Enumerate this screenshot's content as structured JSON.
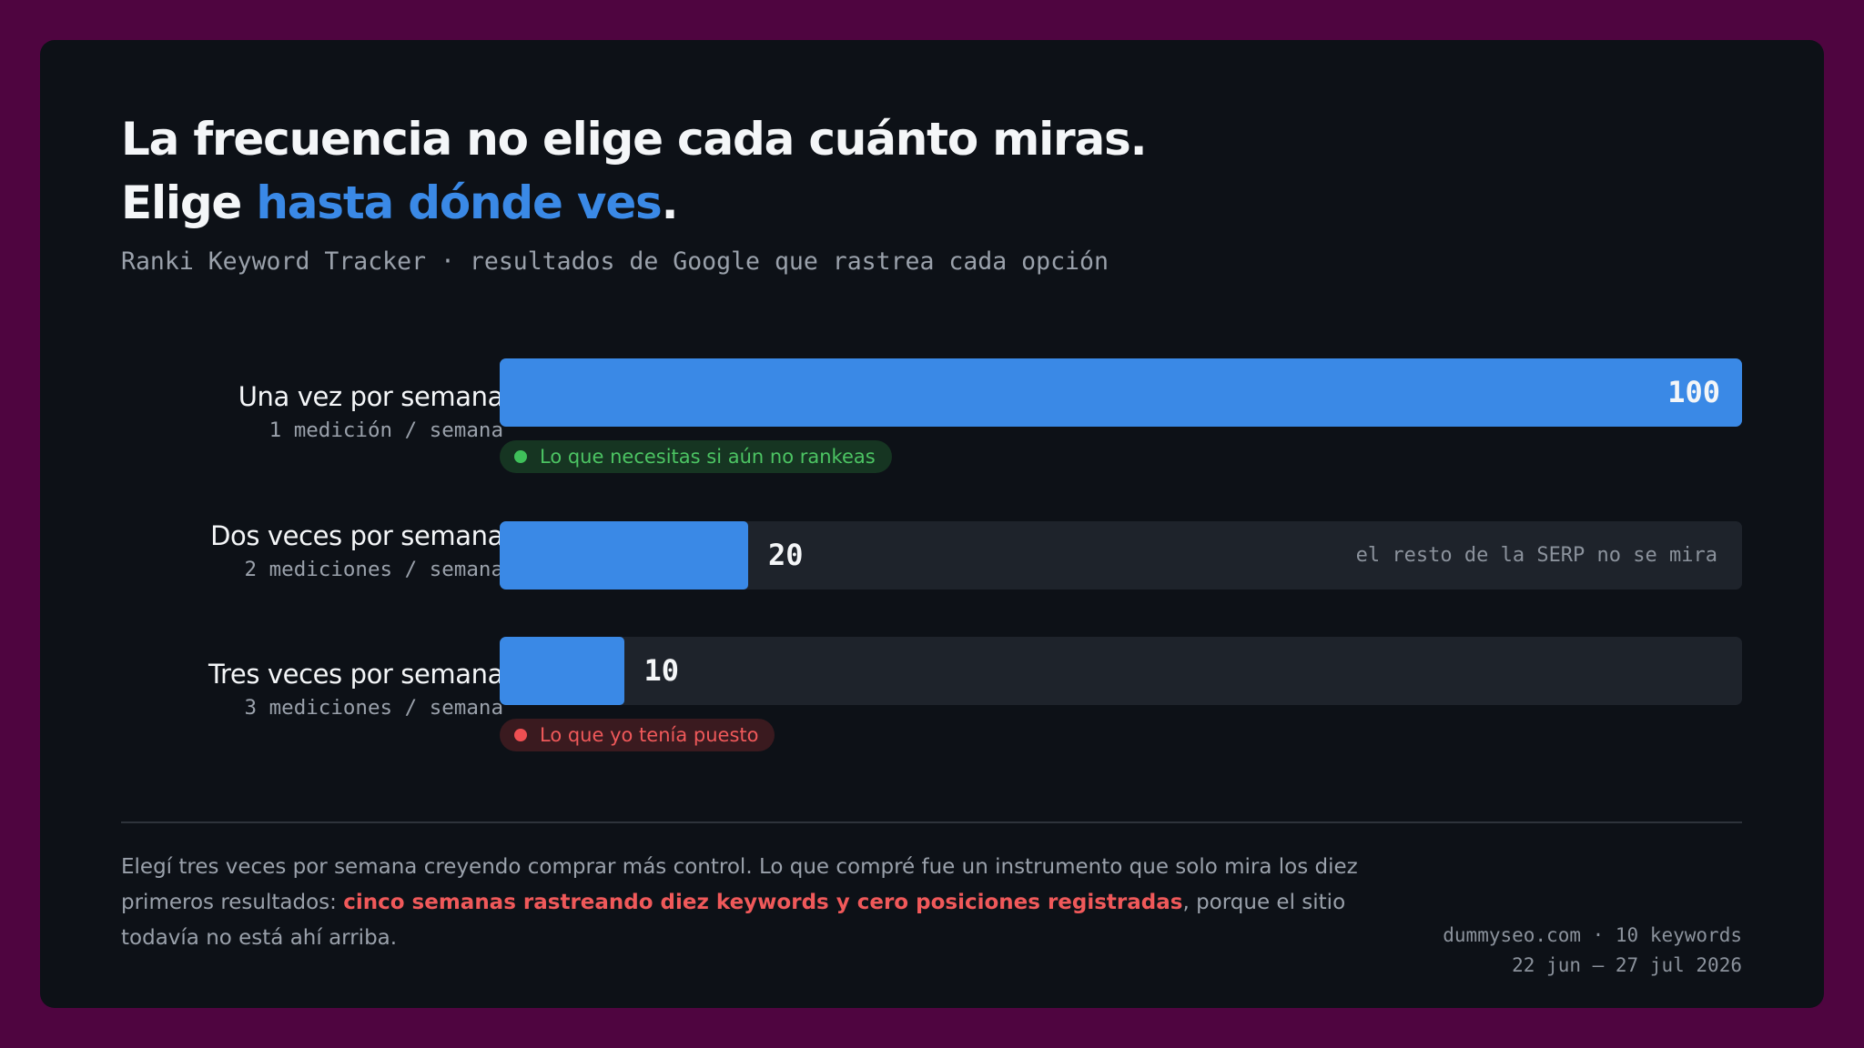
{
  "header": {
    "title_line1": "La frecuencia no elige cada cuánto miras.",
    "title_line2_prefix": "Elige ",
    "title_line2_highlight": "hasta dónde ves",
    "title_line2_suffix": ".",
    "subtitle": "Ranki Keyword Tracker · resultados de Google que rastrea cada opción"
  },
  "chart_data": {
    "type": "bar",
    "orientation": "horizontal",
    "categories": [
      "Una vez por semana",
      "Dos veces por semana",
      "Tres veces por semana"
    ],
    "category_sublabels": [
      "1 medición / semana",
      "2 mediciones / semana",
      "3 mediciones / semana"
    ],
    "values": [
      100,
      20,
      10
    ],
    "xlim": [
      0,
      100
    ],
    "bar_color": "#3a89e6",
    "track_color": "#1e232b",
    "annotations": {
      "row1_badge": "Lo que necesitas si aún no rankeas",
      "row2_note": "el resto de la SERP no se mira",
      "row3_badge": "Lo que yo tenía puesto"
    }
  },
  "footer": {
    "text_before": "Elegí tres veces por semana creyendo comprar más control. Lo que compré fue un instrumento que solo mira los diez primeros resultados: ",
    "text_emphasis": "cinco semanas rastreando diez keywords y cero posiciones registradas",
    "text_after": ", porque el sitio todavía no está ahí arriba.",
    "meta_line1": "dummyseo.com · 10 keywords",
    "meta_line2": "22 jun – 27 jul 2026"
  },
  "colors": {
    "background": "#4f0540",
    "card": "#0d1117",
    "accent_blue": "#3a89e6",
    "positive_green": "#3fc05a",
    "negative_red": "#ef4f52"
  }
}
